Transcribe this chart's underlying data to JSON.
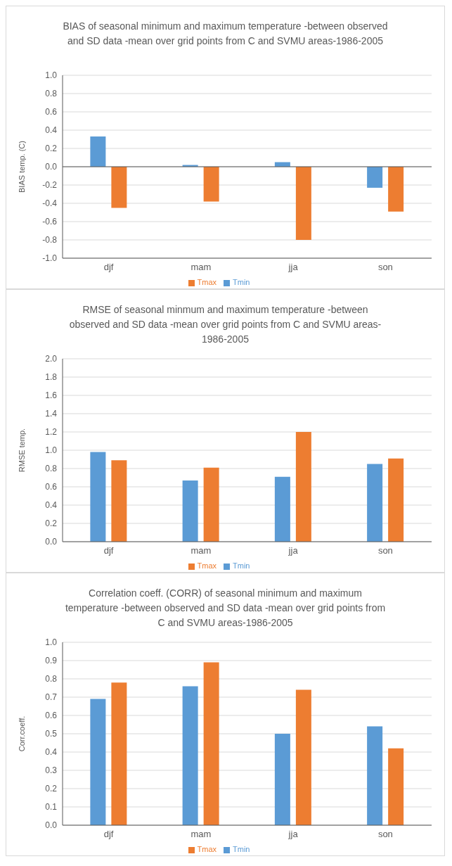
{
  "chart_data": [
    {
      "type": "bar",
      "title": "BIAS of seasonal minimum and maximum temperature -between observed and SD data -mean over grid points from C and SVMU areas-1986-2005",
      "ylabel": "BIAS temp. (C)",
      "categories": [
        "djf",
        "mam",
        "jja",
        "son"
      ],
      "series": [
        {
          "name": "Tmin",
          "color": "#5b9bd5",
          "values": [
            0.33,
            0.02,
            0.05,
            -0.23
          ]
        },
        {
          "name": "Tmax",
          "color": "#ed7d31",
          "values": [
            -0.45,
            -0.38,
            -0.8,
            -0.49
          ]
        }
      ],
      "ylim": [
        -1,
        1
      ],
      "yticks": [
        {
          "value": -1,
          "label": "-1.0"
        },
        -0.8,
        -0.6,
        -0.4,
        -0.2,
        {
          "value": 0,
          "label": "0.0"
        },
        0.2,
        0.4,
        0.6,
        0.8,
        {
          "value": 1,
          "label": "1.0"
        }
      ],
      "grid": "y",
      "legend": "bottom"
    },
    {
      "type": "bar",
      "title": "RMSE of seasonal minmum and maximum temperature -between observed and SD data -mean over grid points from C and SVMU areas-1986-2005",
      "ylabel": "RMSE temp.",
      "categories": [
        "djf",
        "mam",
        "jja",
        "son"
      ],
      "series": [
        {
          "name": "Tmin",
          "color": "#5b9bd5",
          "values": [
            0.98,
            0.67,
            0.71,
            0.85
          ]
        },
        {
          "name": "Tmax",
          "color": "#ed7d31",
          "values": [
            0.89,
            0.81,
            1.2,
            0.91
          ]
        }
      ],
      "ylim": [
        0,
        2
      ],
      "yticks": [
        {
          "value": 0,
          "label": "0.0"
        },
        0.2,
        0.4,
        0.6,
        0.8,
        {
          "value": 1,
          "label": "1.0"
        },
        1.2,
        1.4,
        1.6,
        1.8,
        {
          "value": 2,
          "label": "2.0"
        }
      ],
      "grid": "y",
      "legend": "bottom"
    },
    {
      "type": "bar",
      "title": "Correlation coeff. (CORR) of seasonal minimum and maximum temperature -between observed and SD data -mean over grid points from C and SVMU areas-1986-2005",
      "ylabel": "Corr.coeff.",
      "categories": [
        "djf",
        "mam",
        "jja",
        "son"
      ],
      "series": [
        {
          "name": "Tmin",
          "color": "#5b9bd5",
          "values": [
            0.69,
            0.76,
            0.5,
            0.54
          ]
        },
        {
          "name": "Tmax",
          "color": "#ed7d31",
          "values": [
            0.78,
            0.89,
            0.74,
            0.42
          ]
        }
      ],
      "ylim": [
        0,
        1
      ],
      "yticks": [
        {
          "value": 0,
          "label": "0.0"
        },
        0.1,
        0.2,
        0.3,
        0.4,
        0.5,
        0.6,
        0.7,
        0.8,
        0.9,
        {
          "value": 1,
          "label": "1.0"
        }
      ],
      "grid": "y",
      "legend": "bottom"
    }
  ]
}
